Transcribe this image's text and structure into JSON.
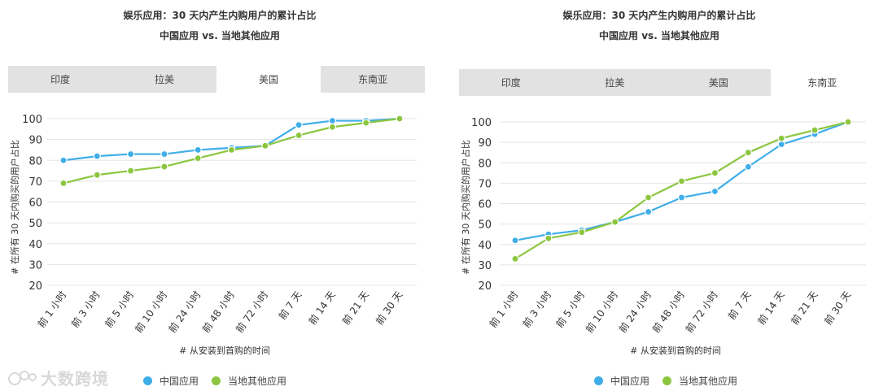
{
  "charts": [
    {
      "title": "娱乐应用：30 天内产生内购用户的累计占比",
      "subtitle": "中国应用 vs. 当地其他应用",
      "tabs": [
        {
          "label": "印度",
          "active": false
        },
        {
          "label": "拉美",
          "active": false
        },
        {
          "label": "美国",
          "active": true
        },
        {
          "label": "东南亚",
          "active": false
        }
      ],
      "legend": [
        {
          "label": "中国应用",
          "color": "#3faee8"
        },
        {
          "label": "当地其他应用",
          "color": "#8cc63f"
        }
      ]
    },
    {
      "title": "娱乐应用：30 天内产生内购用户的累计占比",
      "subtitle": "中国应用 vs. 当地其他应用",
      "tabs": [
        {
          "label": "印度",
          "active": false
        },
        {
          "label": "拉美",
          "active": false
        },
        {
          "label": "美国",
          "active": false
        },
        {
          "label": "东南亚",
          "active": true
        }
      ],
      "legend": [
        {
          "label": "中国应用",
          "color": "#3faee8"
        },
        {
          "label": "当地其他应用",
          "color": "#8cc63f"
        }
      ]
    }
  ],
  "watermark": "大数跨境",
  "chart_data": [
    {
      "type": "line",
      "title": "娱乐应用：30 天内产生内购用户的累计占比",
      "subtitle": "中国应用 vs. 当地其他应用",
      "xlabel": "# 从安装到首购的时间",
      "ylabel": "# 在所有 30 天内购买的用户占比",
      "categories": [
        "前 1 小时",
        "前 3 小时",
        "前 5 小时",
        "前 10 小时",
        "前 24 小时",
        "前 48 小时",
        "前 72 小时",
        "前 7 天",
        "前 14 天",
        "前 21 天",
        "前 30 天"
      ],
      "yticks": [
        20,
        30,
        40,
        50,
        60,
        70,
        80,
        90,
        100
      ],
      "ylim": [
        20,
        100
      ],
      "grid": true,
      "legend_position": "bottom",
      "series": [
        {
          "name": "中国应用",
          "color": "#3faee8",
          "values": [
            80,
            82,
            83,
            83,
            85,
            86,
            87,
            97,
            99,
            99,
            100
          ]
        },
        {
          "name": "当地其他应用",
          "color": "#8cc63f",
          "values": [
            69,
            73,
            75,
            77,
            81,
            85,
            87,
            92,
            96,
            98,
            100
          ]
        }
      ]
    },
    {
      "type": "line",
      "title": "娱乐应用：30 天内产生内购用户的累计占比",
      "subtitle": "中国应用 vs. 当地其他应用",
      "xlabel": "# 从安装到首购的时间",
      "ylabel": "# 在所有 30 天内购买的用户占比",
      "categories": [
        "前 1 小时",
        "前 3 小时",
        "前 5 小时",
        "前 10 小时",
        "前 24 小时",
        "前 48 小时",
        "前 72 小时",
        "前 7 天",
        "前 14 天",
        "前 21 天",
        "前 30 天"
      ],
      "yticks": [
        20,
        30,
        40,
        50,
        60,
        70,
        80,
        90,
        100
      ],
      "ylim": [
        20,
        100
      ],
      "grid": true,
      "legend_position": "bottom",
      "series": [
        {
          "name": "中国应用",
          "color": "#3faee8",
          "values": [
            42,
            45,
            47,
            51,
            56,
            63,
            66,
            78,
            89,
            94,
            100
          ]
        },
        {
          "name": "当地其他应用",
          "color": "#8cc63f",
          "values": [
            33,
            43,
            46,
            51,
            63,
            71,
            75,
            85,
            92,
            96,
            100
          ]
        }
      ]
    }
  ]
}
